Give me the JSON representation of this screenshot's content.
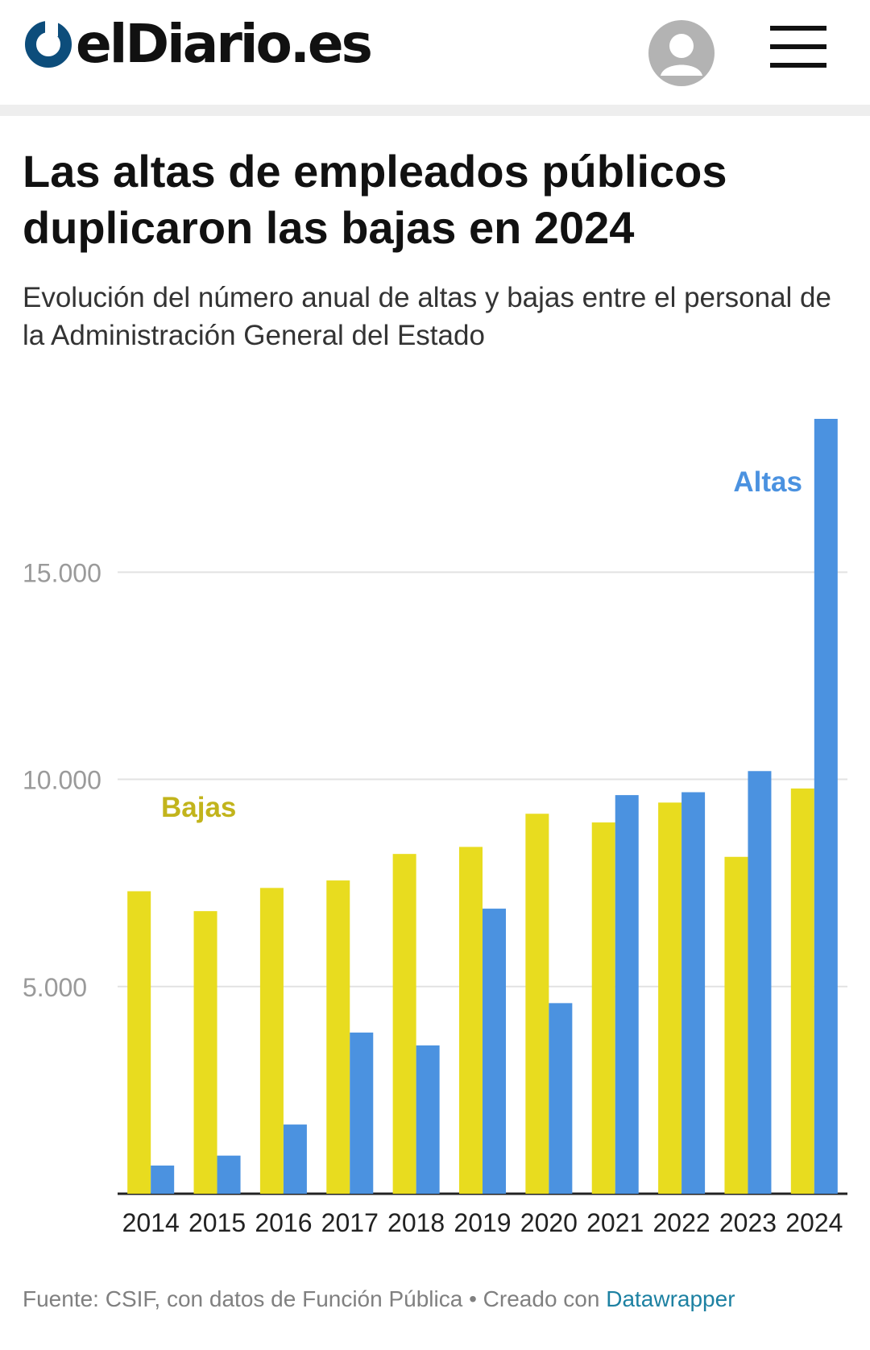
{
  "site": {
    "logo_text": "elDiario.es"
  },
  "chart_data": {
    "type": "bar",
    "title": "Las altas de empleados públicos duplicaron las bajas en 2024",
    "subtitle": "Evolución del número anual de altas y bajas entre el personal de la Administración General del Estado",
    "categories": [
      "2014",
      "2015",
      "2016",
      "2017",
      "2018",
      "2019",
      "2020",
      "2021",
      "2022",
      "2023",
      "2024"
    ],
    "series": [
      {
        "name": "Bajas",
        "color": "#e8dc1f",
        "label_color": "#c2b41c",
        "values": [
          7300,
          6820,
          7380,
          7560,
          8200,
          8370,
          9170,
          8960,
          9440,
          8130,
          9780
        ]
      },
      {
        "name": "Altas",
        "color": "#4b92e0",
        "label_color": "#4b92e0",
        "values": [
          680,
          920,
          1670,
          3890,
          3580,
          6880,
          4600,
          9620,
          9690,
          10200,
          18700
        ]
      }
    ],
    "y_ticks": [
      5000,
      10000,
      15000
    ],
    "y_tick_labels": [
      "5.000",
      "10.000",
      "15.000"
    ],
    "ylim": [
      0,
      18700
    ],
    "grid": true,
    "legend": "direct labels",
    "source_prefix": "Fuente: CSIF, con datos de Función Pública • Creado con",
    "source_link": "Datawrapper"
  }
}
